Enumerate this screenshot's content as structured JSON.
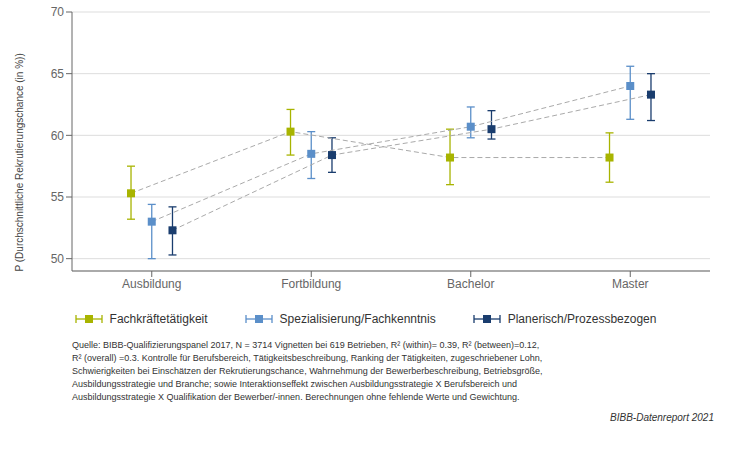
{
  "chart_data": {
    "type": "line",
    "categories": [
      "Ausbildung",
      "Fortbildung",
      "Bachelor",
      "Master"
    ],
    "series": [
      {
        "name": "Fachkräftetätigkeit",
        "color": "#a8b400",
        "values": [
          55.3,
          60.3,
          58.2,
          58.2
        ],
        "ci_low": [
          53.2,
          58.4,
          56.0,
          56.2
        ],
        "ci_high": [
          57.5,
          62.1,
          60.5,
          60.2
        ],
        "marker": "square",
        "line_style": "dashed"
      },
      {
        "name": "Spezialisierung/Fachkenntnis",
        "color": "#5b8fc9",
        "values": [
          53.0,
          58.5,
          60.7,
          64.0
        ],
        "ci_low": [
          50.0,
          56.5,
          59.8,
          61.3
        ],
        "ci_high": [
          54.4,
          60.3,
          62.3,
          65.6
        ],
        "marker": "square",
        "line_style": "dashed"
      },
      {
        "name": "Planerisch/Prozessbezogen",
        "color": "#1a3d6e",
        "values": [
          52.3,
          58.4,
          60.5,
          63.3
        ],
        "ci_low": [
          50.3,
          57.0,
          59.7,
          61.2
        ],
        "ci_high": [
          54.2,
          59.8,
          62.0,
          65.0
        ],
        "marker": "square",
        "line_style": "dashed"
      }
    ],
    "ylim": [
      49,
      70
    ],
    "yticks": [
      50,
      55,
      60,
      65,
      70
    ],
    "ylabel": "P (Durchschnittliche Rekrutierungschance (in %))",
    "grid": true,
    "legend": "bottom",
    "annotations": [
      "Quelle: BIBB-Qualifizierungspanel 2017, N = 3714 Vignetten bei 619 Betrieben, R² (within)= 0.39, R² (between)=0.12,\nR² (overall) =0.3. Kontrolle für Berufsbereich, Tätigkeitsbeschreibung, Ranking der Tätigkeiten, zugeschriebener Lohn,\nSchwierigkeiten bei Einschätzen der Rekrutierungschance, Wahrnehmung der Bewerberbeschreibung, Betriebsgröße,\nAusbildungsstrategie und Branche; sowie Interaktionseffekt zwischen Ausbildungsstrategie X Berufsbereich und\nAusbildungsstrategie X Qualifikation der Bewerber/-innen. Berechnungen ohne fehlende Werte und Gewichtung.",
      "BIBB-Datenreport 2021"
    ]
  }
}
